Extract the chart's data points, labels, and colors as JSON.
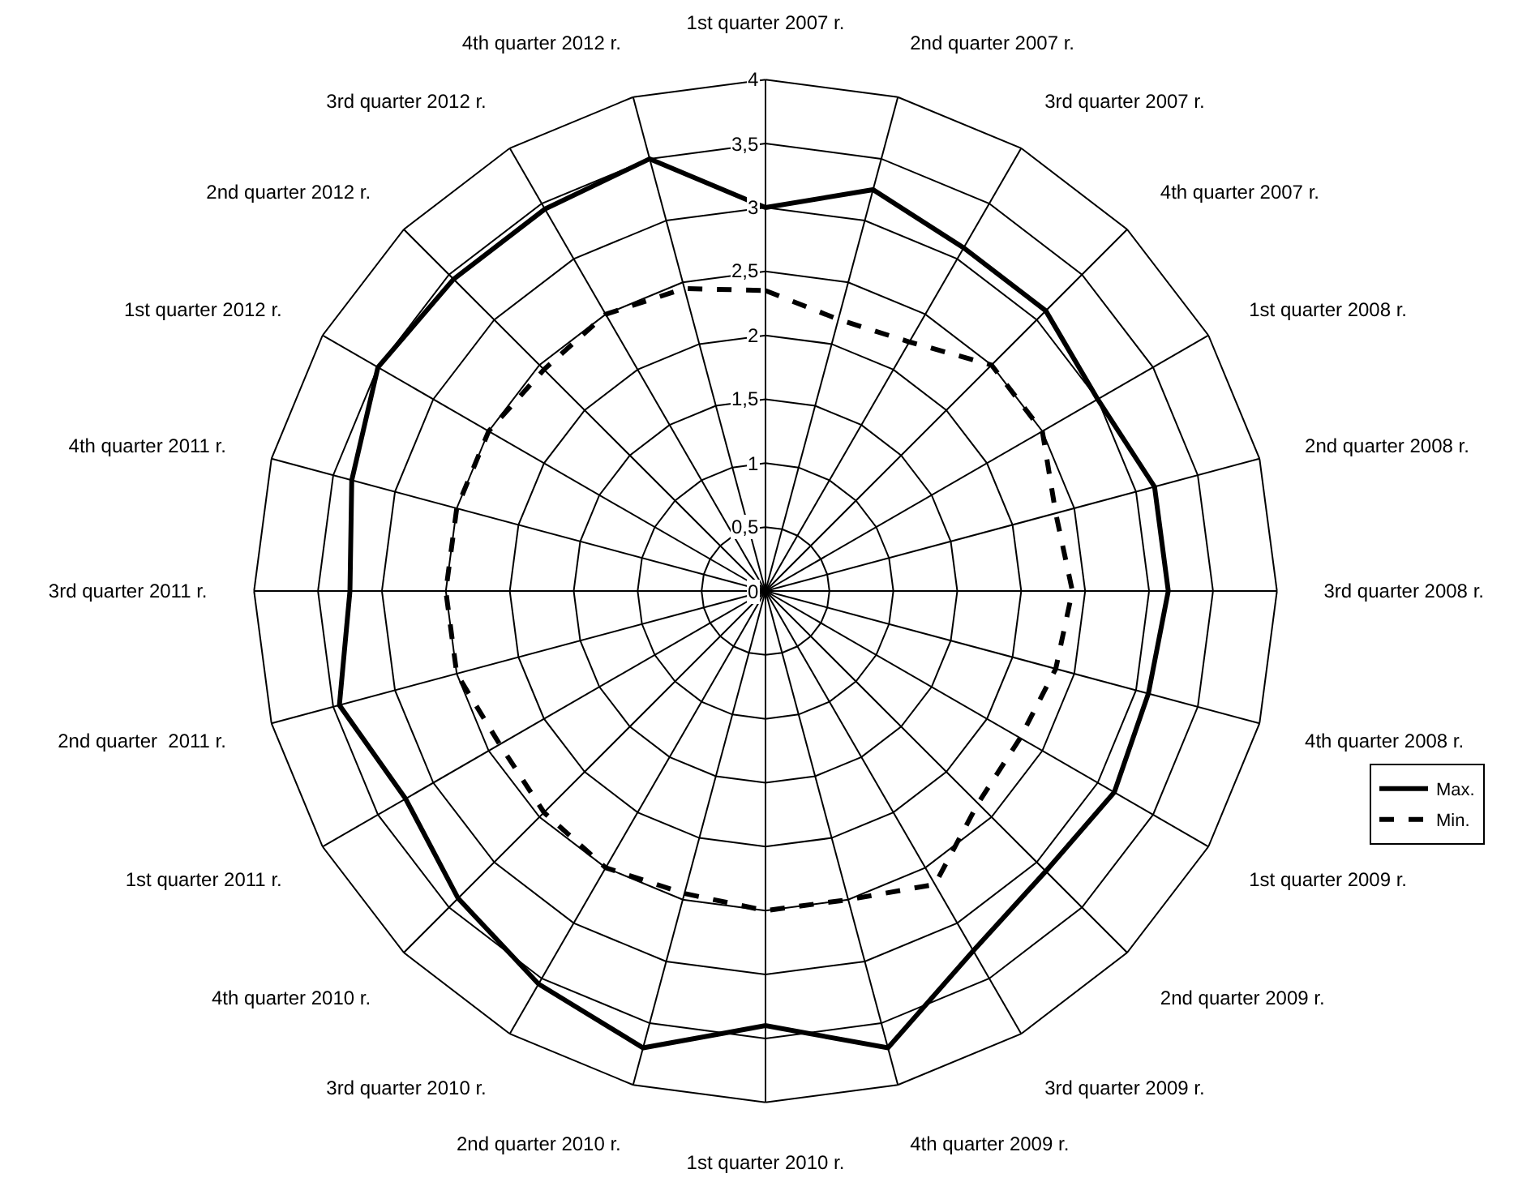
{
  "chart_data": {
    "type": "radar",
    "categories": [
      "1st quarter 2007 r.",
      "2nd quarter 2007 r.",
      "3rd quarter 2007 r.",
      "4th quarter 2007 r.",
      "1st quarter 2008 r.",
      "2nd quarter 2008 r.",
      "3rd quarter 2008 r.",
      "4th quarter 2008 r.",
      "1st quarter 2009 r.",
      "2nd quarter 2009 r.",
      "3rd quarter 2009 r.",
      "4th quarter 2009 r.",
      "1st quarter 2010 r.",
      "2nd quarter 2010 r.",
      "3rd quarter 2010 r.",
      "4th quarter 2010 r.",
      "1st quarter 2011 r.",
      "2nd quarter  2011 r.",
      "3rd quarter 2011 r.",
      "4th quarter 2011 r.",
      "1st quarter 2012 r.",
      "2nd quarter 2012 r.",
      "3rd quarter 2012 r.",
      "4th quarter 2012 r."
    ],
    "series": [
      {
        "name": "Max.",
        "color": "#000000",
        "line_style": "solid",
        "values": [
          3.0,
          3.25,
          3.1,
          3.1,
          3.0,
          3.15,
          3.15,
          3.1,
          3.15,
          3.1,
          3.25,
          3.7,
          3.4,
          3.7,
          3.55,
          3.4,
          3.25,
          3.45,
          3.25,
          3.35,
          3.5,
          3.45,
          3.45,
          3.5
        ]
      },
      {
        "name": "Min.",
        "color": "#000000",
        "line_style": "dashed",
        "values": [
          2.35,
          2.2,
          2.25,
          2.5,
          2.5,
          2.35,
          2.4,
          2.35,
          2.3,
          2.35,
          2.65,
          2.5,
          2.5,
          2.45,
          2.5,
          2.45,
          2.4,
          2.5,
          2.5,
          2.5,
          2.5,
          2.45,
          2.5,
          2.45
        ]
      }
    ],
    "ylim": [
      0,
      4
    ],
    "yticks": [
      0,
      {
        "value": 0.5,
        "label": "0,5"
      },
      1,
      {
        "value": 1.5,
        "label": "1,5"
      },
      2,
      {
        "value": 2.5,
        "label": "2,5"
      },
      3,
      {
        "value": 3.5,
        "label": "3,5"
      },
      4
    ],
    "grid": true,
    "legend": "right",
    "marker": "none"
  }
}
